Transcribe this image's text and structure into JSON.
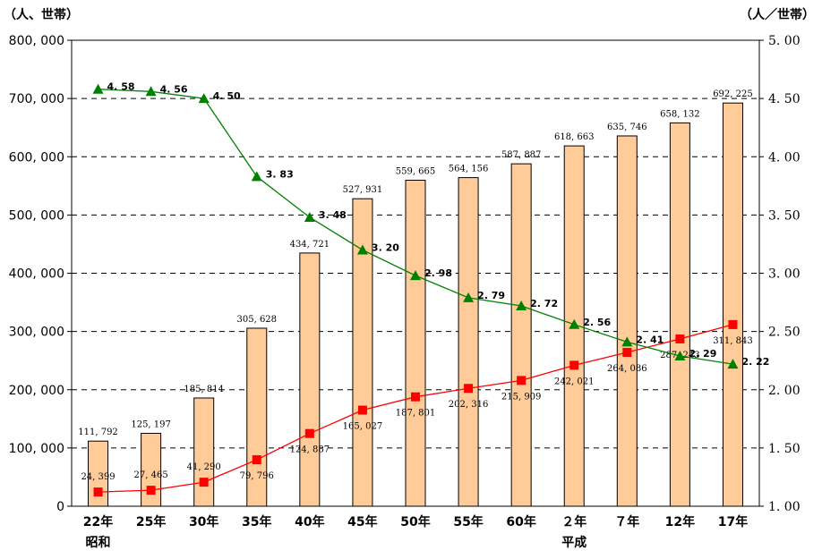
{
  "chart_data": {
    "type": "bar",
    "title": "",
    "y_left_unit": "（人、世帯）",
    "y_right_unit": "（人／世帯）",
    "y_left_ticks": [
      "0",
      "100, 000",
      "200, 000",
      "300, 000",
      "400, 000",
      "500, 000",
      "600, 000",
      "700, 000",
      "800, 000"
    ],
    "y_right_ticks": [
      "1. 00",
      "1. 50",
      "2. 00",
      "2. 50",
      "3. 00",
      "3. 50",
      "4. 00",
      "4. 50",
      "5. 00"
    ],
    "ylim_left": [
      0,
      800000
    ],
    "ylim_right": [
      1.0,
      5.0
    ],
    "grid": "dashed-horizontal",
    "categories": [
      "22年",
      "25年",
      "30年",
      "35年",
      "40年",
      "45年",
      "50年",
      "55年",
      "60年",
      "２年",
      "７年",
      "12年",
      "17年"
    ],
    "era_labels": [
      {
        "category_index": 0,
        "text": "昭和"
      },
      {
        "category_index": 9,
        "text": "平成"
      }
    ],
    "series": [
      {
        "kind": "bar",
        "axis": "left",
        "color": "#FFCC99",
        "values": [
          111792,
          125197,
          185814,
          305628,
          434721,
          527931,
          559665,
          564156,
          587887,
          618663,
          635746,
          658132,
          692225
        ],
        "labels": [
          "111, 792",
          "125, 197",
          "185, 814",
          "305, 628",
          "434, 721",
          "527, 931",
          "559, 665",
          "564, 156",
          "587, 887",
          "618, 663",
          "635, 746",
          "658, 132",
          "692, 225"
        ]
      },
      {
        "kind": "line",
        "axis": "left",
        "color": "#FF0000",
        "marker": "square",
        "values": [
          24399,
          27465,
          41290,
          79796,
          124887,
          165027,
          187801,
          202316,
          215909,
          242021,
          264086,
          287243,
          311843
        ],
        "labels": [
          "24, 399",
          "27, 465",
          "41, 290",
          "79, 796",
          "124, 887",
          "165, 027",
          "187, 801",
          "202, 316",
          "215, 909",
          "242, 021",
          "264, 086",
          "287, 243",
          "311, 843"
        ]
      },
      {
        "kind": "line",
        "axis": "right",
        "color": "#008000",
        "marker": "triangle",
        "values": [
          4.58,
          4.56,
          4.5,
          3.83,
          3.48,
          3.2,
          2.98,
          2.79,
          2.72,
          2.56,
          2.41,
          2.29,
          2.22
        ],
        "labels": [
          "4. 58",
          "4. 56",
          "4. 50",
          "3. 83",
          "3. 48",
          "3. 20",
          "2. 98",
          "2. 79",
          "2. 72",
          "2. 56",
          "2. 41",
          "2. 29",
          "2. 22"
        ]
      }
    ]
  }
}
